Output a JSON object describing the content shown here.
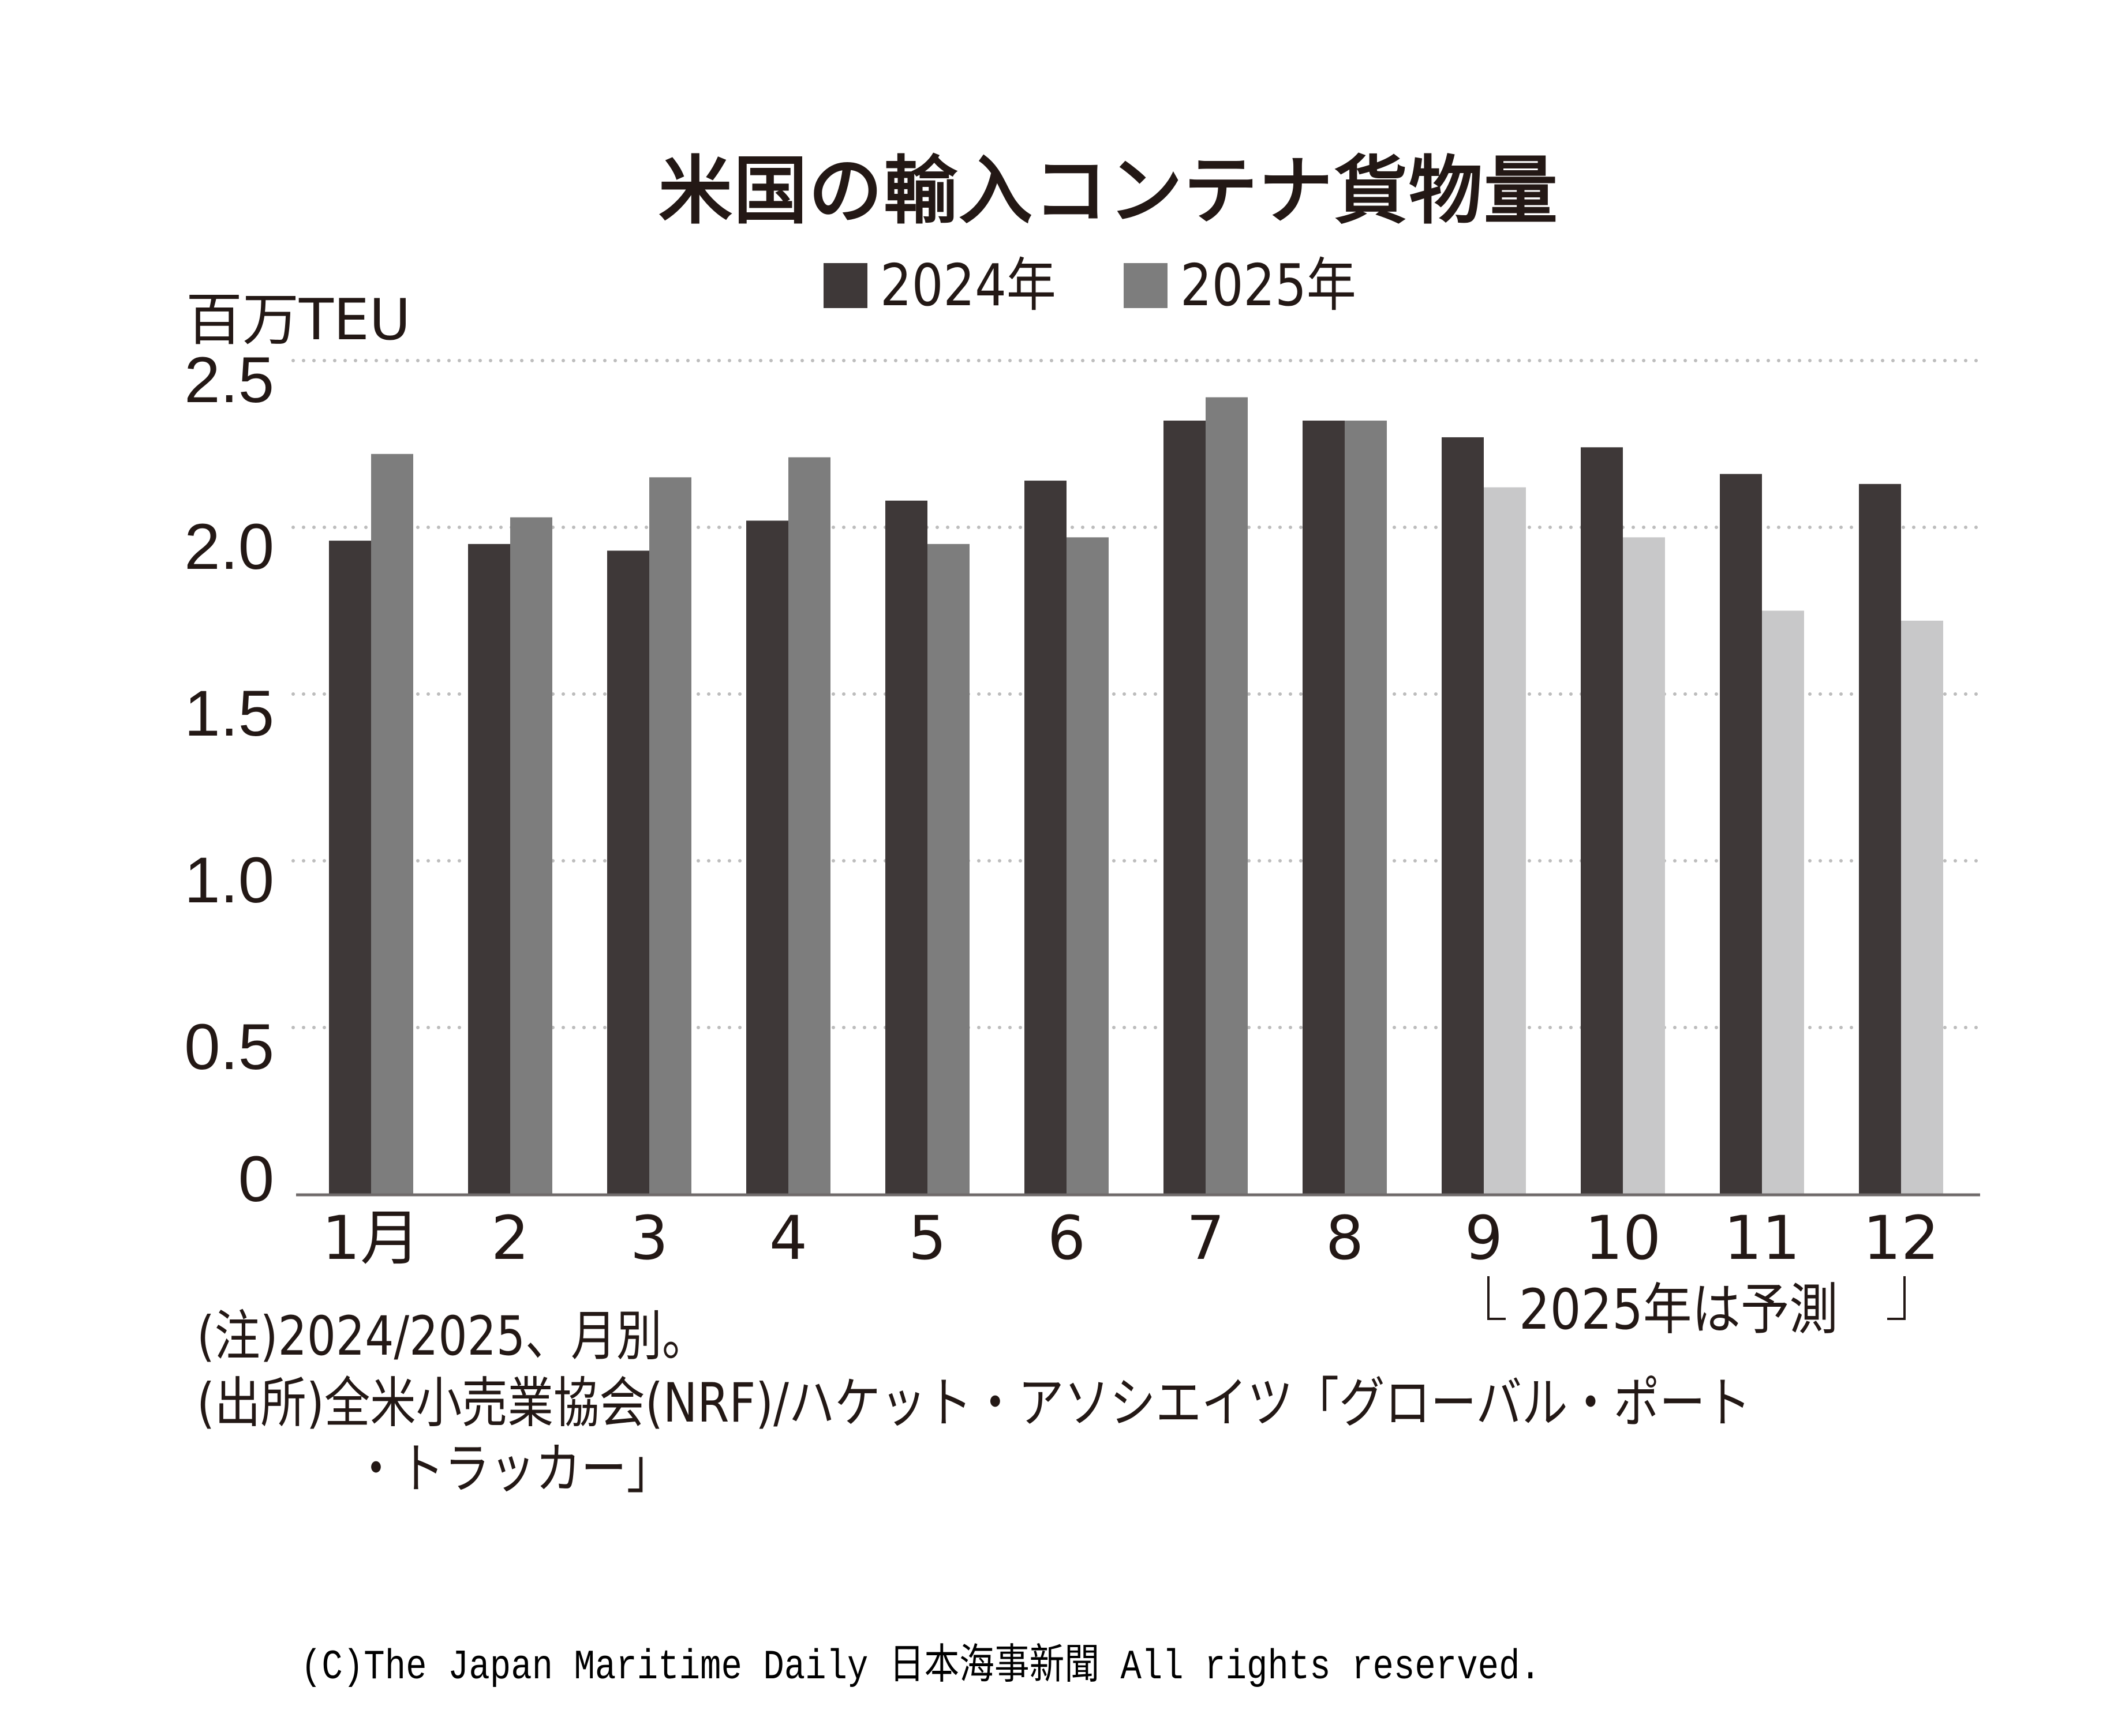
{
  "colors": {
    "series_2024": "#3e3838",
    "series_2025": "#7d7d7d",
    "series_2025_forecast": "#c8c8c9",
    "gridline": "#bdbdbd",
    "axis": "#6f6a6a",
    "text": "#231815"
  },
  "chart_data": {
    "type": "bar",
    "title": "米国の輸入コンテナ貨物量",
    "ylabel": "百万TEU",
    "xlabel": "",
    "ylim": [
      0,
      2.5
    ],
    "yticks": [
      0,
      0.5,
      1.0,
      1.5,
      2.0,
      2.5
    ],
    "ytick_labels": [
      "0",
      "0.5",
      "1.0",
      "1.5",
      "2.0",
      "2.5"
    ],
    "grid": true,
    "legend_position": "top-center",
    "categories": [
      "1月",
      "2",
      "3",
      "4",
      "5",
      "6",
      "7",
      "8",
      "9",
      "10",
      "11",
      "12"
    ],
    "series": [
      {
        "name": "2024年",
        "values": [
          1.96,
          1.95,
          1.93,
          2.02,
          2.08,
          2.14,
          2.32,
          2.32,
          2.27,
          2.24,
          2.16,
          2.13
        ]
      },
      {
        "name": "2025年",
        "values": [
          2.22,
          2.03,
          2.15,
          2.21,
          1.95,
          1.97,
          2.39,
          2.32,
          2.12,
          1.97,
          1.75,
          1.72
        ],
        "forecast_from_index": 8
      }
    ],
    "annotations": [
      "2025年は予測"
    ]
  },
  "notes": {
    "note": "(注)2024/2025、月別。",
    "source_line1": "(出所)全米小売業協会(NRF)/ハケット・アソシエイツ「グローバル・ポート",
    "source_line2": "・トラッカー」"
  },
  "copyright": "(C)The Japan Maritime Daily 日本海事新聞 All rights reserved."
}
